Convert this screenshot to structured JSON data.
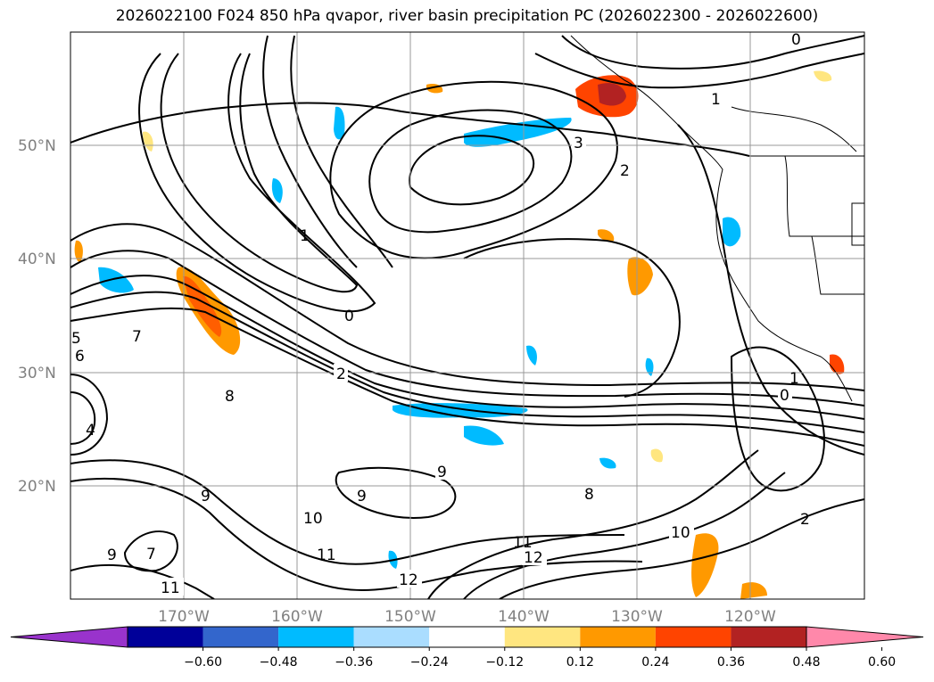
{
  "title": "2026022100 F024 850 hPa qvapor, river basin precipitation PC (2026022300 - 2026022600)",
  "lat_labels": [
    "50°N",
    "40°N",
    "30°N",
    "20°N"
  ],
  "lon_labels": [
    "170°W",
    "160°W",
    "150°W",
    "140°W",
    "130°W",
    "120°W"
  ],
  "contour_labels": [
    "0",
    "1",
    "1",
    "2",
    "2",
    "3",
    "0",
    "6",
    "7",
    "9",
    "8",
    "9",
    "9",
    "10",
    "11",
    "12",
    "12",
    "11",
    "10",
    "9",
    "8",
    "7",
    "11",
    "4",
    "5",
    "0",
    "1",
    "2"
  ],
  "colorbar": {
    "ticks": [
      "−0.60",
      "−0.48",
      "−0.36",
      "−0.24",
      "−0.12",
      "0.12",
      "0.24",
      "0.36",
      "0.48",
      "0.60"
    ],
    "colors": [
      "#9933cc",
      "#000099",
      "#3366cc",
      "#00bbff",
      "#aaddff",
      "#ffffff",
      "#ffe680",
      "#ff9900",
      "#ff4400",
      "#b22222",
      "#ff88aa"
    ]
  }
}
